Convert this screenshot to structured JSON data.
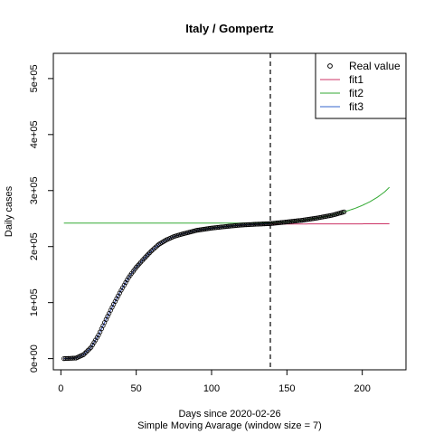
{
  "chart_data": {
    "type": "line",
    "title": "Italy / Gompertz",
    "xlabel": "Days since 2020-02-26",
    "xlabel2": "Simple Moving Avarage (window size = 7)",
    "ylabel": "Daily cases",
    "xlim": [
      -5,
      229
    ],
    "ylim": [
      -20000,
      545000
    ],
    "x_ticks": [
      0,
      50,
      100,
      150,
      200
    ],
    "y_ticks": [
      0,
      100000,
      200000,
      300000,
      400000,
      500000
    ],
    "x_tick_labels": [
      "0",
      "50",
      "100",
      "150",
      "200"
    ],
    "y_tick_labels": [
      "0e+00",
      "1e+05",
      "2e+05",
      "3e+05",
      "4e+05",
      "5e+05"
    ],
    "vline": {
      "x": 139,
      "style": "dashed"
    },
    "legend": {
      "position": "top-right",
      "entries": [
        {
          "label": "Real value",
          "kind": "point",
          "color": "#000000"
        },
        {
          "label": "fit1",
          "kind": "line",
          "color": "#CC3366"
        },
        {
          "label": "fit2",
          "kind": "line",
          "color": "#33AA33"
        },
        {
          "label": "fit3",
          "kind": "line",
          "color": "#3366CC"
        }
      ]
    },
    "real": {
      "name": "Real value",
      "x_start": 2,
      "x_end": 188,
      "knots_x": [
        2,
        10,
        15,
        20,
        25,
        30,
        35,
        40,
        45,
        50,
        55,
        60,
        65,
        70,
        75,
        80,
        90,
        100,
        110,
        120,
        130,
        139,
        150,
        160,
        170,
        180,
        188
      ],
      "knots_y": [
        0,
        1000,
        7000,
        20000,
        42000,
        70000,
        97000,
        122000,
        145000,
        163000,
        178000,
        192000,
        204000,
        212000,
        218000,
        222000,
        229000,
        233000,
        236000,
        238500,
        240000,
        241000,
        244000,
        247000,
        251000,
        256000,
        262000
      ]
    },
    "series": [
      {
        "name": "fit1",
        "color": "#CC3366",
        "knots_x": [
          2,
          10,
          15,
          20,
          25,
          30,
          35,
          40,
          45,
          50,
          55,
          60,
          65,
          70,
          75,
          80,
          90,
          100,
          110,
          120,
          130,
          139,
          150,
          175,
          200,
          218
        ],
        "knots_y": [
          0,
          1000,
          7000,
          20000,
          42000,
          70000,
          97000,
          122000,
          145000,
          163000,
          178000,
          192000,
          204000,
          212000,
          218000,
          222000,
          229000,
          233000,
          236000,
          238000,
          239500,
          240000,
          240300,
          240500,
          240600,
          240700
        ]
      },
      {
        "name": "fit2",
        "color": "#33AA33",
        "knots_x": [
          2,
          120,
          139,
          150,
          160,
          170,
          180,
          188,
          195,
          200,
          205,
          210,
          215,
          218
        ],
        "knots_y": [
          242000,
          242000,
          242300,
          244000,
          247000,
          251000,
          256000,
          262000,
          268000,
          273500,
          280000,
          288000,
          298000,
          306000
        ]
      },
      {
        "name": "fit3",
        "color": "#3366CC",
        "knots_x": [
          2,
          10,
          15,
          20,
          25,
          30,
          35,
          40,
          45,
          50,
          55,
          60,
          65,
          70,
          75,
          80,
          90,
          100,
          110,
          120,
          130,
          139
        ],
        "knots_y": [
          0,
          1000,
          7000,
          20000,
          42000,
          70000,
          97000,
          122000,
          145000,
          163000,
          178000,
          192000,
          204000,
          212000,
          218000,
          222000,
          229000,
          233000,
          236000,
          238500,
          240000,
          241000
        ]
      }
    ]
  }
}
